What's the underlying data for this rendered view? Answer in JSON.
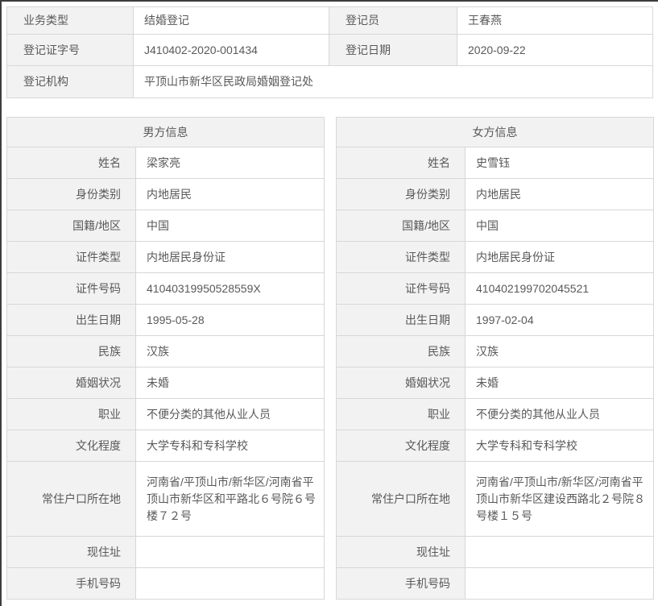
{
  "palette": {
    "label_bg": "#f2f2f2",
    "value_bg": "#ffffff",
    "border": "#d7d7d7",
    "text": "#595959",
    "screenshot_edge": "#3d3d3d"
  },
  "summary": {
    "business_type_label": "业务类型",
    "business_type_value": "结婚登记",
    "registrar_label": "登记员",
    "registrar_value": "王春燕",
    "cert_no_label": "登记证字号",
    "cert_no_value": "J410402-2020-001434",
    "reg_date_label": "登记日期",
    "reg_date_value": "2020-09-22",
    "agency_label": "登记机构",
    "agency_value": "平顶山市新华区民政局婚姻登记处"
  },
  "field_labels": [
    "姓名",
    "身份类别",
    "国籍/地区",
    "证件类型",
    "证件号码",
    "出生日期",
    "民族",
    "婚姻状况",
    "职业",
    "文化程度",
    "常住户口所在地",
    "现住址",
    "手机号码"
  ],
  "male": {
    "title": "男方信息",
    "values": [
      "梁家亮",
      "内地居民",
      "中国",
      "内地居民身份证",
      "41040319950528559X",
      "1995-05-28",
      "汉族",
      "未婚",
      "不便分类的其他从业人员",
      "大学专科和专科学校",
      "河南省/平顶山市/新华区/河南省平顶山市新华区和平路北６号院６号楼７２号",
      "",
      ""
    ]
  },
  "female": {
    "title": "女方信息",
    "values": [
      "史雪钰",
      "内地居民",
      "中国",
      "内地居民身份证",
      "410402199702045521",
      "1997-02-04",
      "汉族",
      "未婚",
      "不便分类的其他从业人员",
      "大学专科和专科学校",
      "河南省/平顶山市/新华区/河南省平顶山市新华区建设西路北２号院８号楼１５号",
      "",
      ""
    ]
  }
}
